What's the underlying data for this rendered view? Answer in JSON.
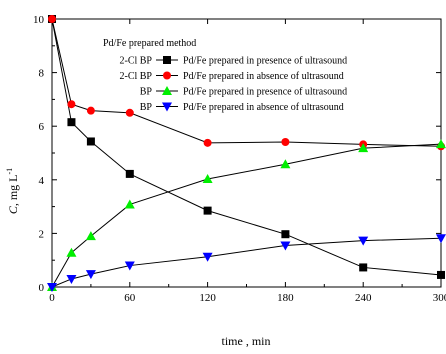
{
  "chart_data": {
    "type": "line",
    "xlabel": "time , min",
    "ylabel_main": "C",
    "ylabel_unit": ", mg L",
    "ylabel_exp": "-1",
    "xlim": [
      0,
      300
    ],
    "ylim": [
      0,
      10
    ],
    "xticks": [
      0,
      60,
      120,
      180,
      240,
      300
    ],
    "yticks": [
      0,
      2,
      4,
      6,
      8,
      10
    ],
    "grid": false,
    "legend_title": "Pd/Fe prepared method",
    "legend_placement": "top-right",
    "series": [
      {
        "name": "Pd/Fe prepared in presence of ultrasound",
        "group": "2-Cl BP",
        "color": "#000000",
        "marker": "square",
        "x": [
          0,
          15,
          30,
          60,
          120,
          180,
          240,
          300
        ],
        "y": [
          10,
          6.15,
          5.43,
          4.22,
          2.85,
          1.97,
          0.73,
          0.45
        ]
      },
      {
        "name": "Pd/Fe prepared in absence of ultrasound",
        "group": "2-Cl BP",
        "color": "#ff0000",
        "marker": "circle",
        "x": [
          0,
          15,
          30,
          60,
          120,
          180,
          240,
          300
        ],
        "y": [
          10,
          6.82,
          6.58,
          6.5,
          5.38,
          5.41,
          5.32,
          5.25
        ]
      },
      {
        "name": "Pd/Fe prepared in presence of ultrasound",
        "group": "BP",
        "color": "#00ee00",
        "marker": "triangle-up",
        "x": [
          0,
          15,
          30,
          60,
          120,
          180,
          240,
          300
        ],
        "y": [
          0,
          1.28,
          1.9,
          3.08,
          4.03,
          4.58,
          5.18,
          5.33
        ]
      },
      {
        "name": "Pd/Fe prepared in absence of ultrasound",
        "group": "BP",
        "color": "#0000ff",
        "marker": "triangle-down",
        "x": [
          0,
          15,
          30,
          60,
          120,
          180,
          240,
          300
        ],
        "y": [
          0,
          0.3,
          0.48,
          0.8,
          1.13,
          1.55,
          1.73,
          1.82
        ]
      }
    ]
  }
}
